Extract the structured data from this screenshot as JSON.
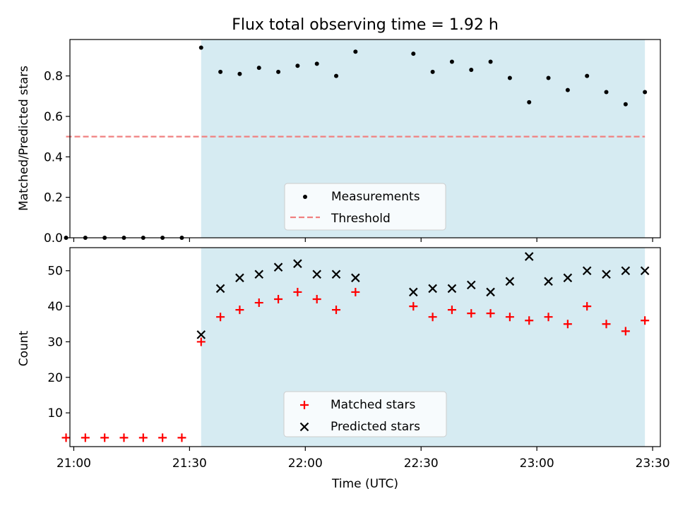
{
  "chart_data": [
    {
      "type": "scatter",
      "title": "Flux total observing time = 1.92 h",
      "xlabel": "",
      "ylabel": "Matched/Predicted stars",
      "ylim": [
        0,
        0.98
      ],
      "yticks": [
        0.0,
        0.2,
        0.4,
        0.6,
        0.8
      ],
      "ytick_labels": [
        "0.0",
        "0.2",
        "0.4",
        "0.6",
        "0.8"
      ],
      "xlim": [
        "20:59",
        "23:32"
      ],
      "shaded_region": {
        "from": "21:33",
        "to": "23:28",
        "color": "#add8e6"
      },
      "legend_position": "lower center",
      "series": [
        {
          "name": "Measurements",
          "marker": "dot",
          "color": "#000000",
          "x": [
            "20:58",
            "21:03",
            "21:08",
            "21:13",
            "21:18",
            "21:23",
            "21:28",
            "21:33",
            "21:38",
            "21:43",
            "21:48",
            "21:53",
            "21:58",
            "22:03",
            "22:08",
            "22:13",
            "22:28",
            "22:33",
            "22:38",
            "22:43",
            "22:48",
            "22:53",
            "22:58",
            "23:03",
            "23:08",
            "23:13",
            "23:18",
            "23:23",
            "23:28"
          ],
          "y": [
            0,
            0,
            0,
            0,
            0,
            0,
            0,
            0.94,
            0.82,
            0.81,
            0.84,
            0.82,
            0.85,
            0.86,
            0.8,
            0.92,
            0.91,
            0.82,
            0.87,
            0.83,
            0.87,
            0.79,
            0.67,
            0.79,
            0.73,
            0.8,
            0.72,
            0.66,
            0.72
          ]
        },
        {
          "name": "Threshold",
          "line": "dashed",
          "color": "#f08080",
          "x": [
            "20:58",
            "23:28"
          ],
          "y": [
            0.5,
            0.5
          ]
        }
      ]
    },
    {
      "type": "scatter",
      "title": "",
      "xlabel": "Time (UTC)",
      "ylabel": "Count",
      "ylim": [
        0.5,
        56.5
      ],
      "yticks": [
        10,
        20,
        30,
        40,
        50
      ],
      "ytick_labels": [
        "10",
        "20",
        "30",
        "40",
        "50"
      ],
      "xticks": [
        "21:00",
        "21:30",
        "22:00",
        "22:30",
        "23:00",
        "23:30"
      ],
      "xlim": [
        "20:59",
        "23:32"
      ],
      "shaded_region": {
        "from": "21:33",
        "to": "23:28",
        "color": "#add8e6"
      },
      "legend_position": "lower center",
      "series": [
        {
          "name": "Matched stars",
          "marker": "plus",
          "color": "#ff0000",
          "x": [
            "20:58",
            "21:03",
            "21:08",
            "21:13",
            "21:18",
            "21:23",
            "21:28",
            "21:33",
            "21:38",
            "21:43",
            "21:48",
            "21:53",
            "21:58",
            "22:03",
            "22:08",
            "22:13",
            "22:28",
            "22:33",
            "22:38",
            "22:43",
            "22:48",
            "22:53",
            "22:58",
            "23:03",
            "23:08",
            "23:13",
            "23:18",
            "23:23",
            "23:28"
          ],
          "y": [
            3,
            3,
            3,
            3,
            3,
            3,
            3,
            30,
            37,
            39,
            41,
            42,
            44,
            42,
            39,
            44,
            40,
            37,
            39,
            38,
            38,
            37,
            36,
            37,
            35,
            40,
            35,
            33,
            36
          ]
        },
        {
          "name": "Predicted stars",
          "marker": "x",
          "color": "#000000",
          "x": [
            "21:33",
            "21:38",
            "21:43",
            "21:48",
            "21:53",
            "21:58",
            "22:03",
            "22:08",
            "22:13",
            "22:28",
            "22:33",
            "22:38",
            "22:43",
            "22:48",
            "22:53",
            "22:58",
            "23:03",
            "23:08",
            "23:13",
            "23:18",
            "23:23",
            "23:28"
          ],
          "y": [
            32,
            45,
            48,
            49,
            51,
            52,
            49,
            49,
            48,
            44,
            45,
            45,
            46,
            44,
            47,
            54,
            47,
            48,
            50,
            49,
            50,
            50
          ]
        }
      ]
    }
  ]
}
